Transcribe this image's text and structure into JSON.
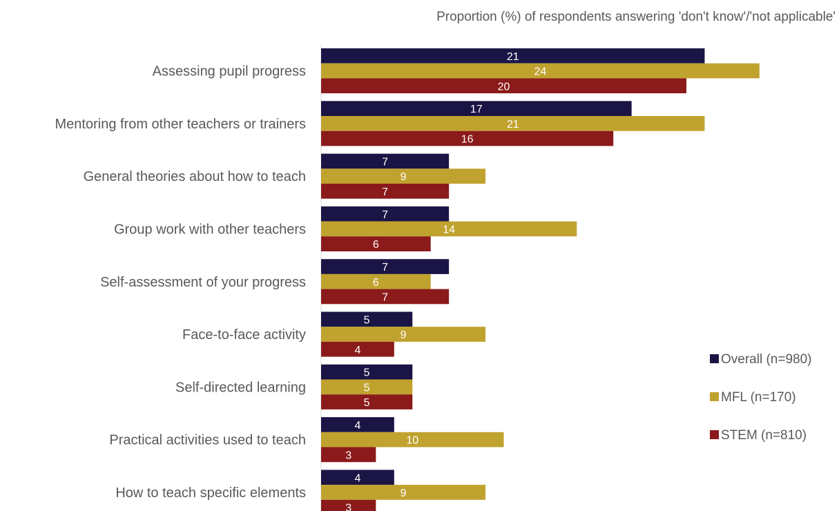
{
  "chart_data": {
    "type": "bar",
    "orientation": "horizontal",
    "title": "Proportion (%) of respondents answering 'don't know'/'not applicable'",
    "categories": [
      "Assessing pupil progress",
      "Mentoring from other teachers or trainers",
      "General theories about how to teach",
      "Group work with other teachers",
      "Self-assessment of your progress",
      "Face-to-face activity",
      "Self-directed learning",
      "Practical activities used to teach",
      "How to teach specific elements"
    ],
    "series": [
      {
        "name": "Overall (n=980)",
        "color": "#1a1545",
        "values": [
          21,
          17,
          7,
          7,
          7,
          5,
          5,
          4,
          4
        ]
      },
      {
        "name": "MFL (n=170)",
        "color": "#c0a22e",
        "values": [
          24,
          21,
          9,
          14,
          6,
          9,
          5,
          10,
          9
        ]
      },
      {
        "name": "STEM (n=810)",
        "color": "#8b1a1a",
        "values": [
          20,
          16,
          7,
          6,
          7,
          4,
          5,
          3,
          3
        ]
      }
    ],
    "xlim": [
      0,
      25
    ],
    "legend_position": "right",
    "grid": false
  }
}
